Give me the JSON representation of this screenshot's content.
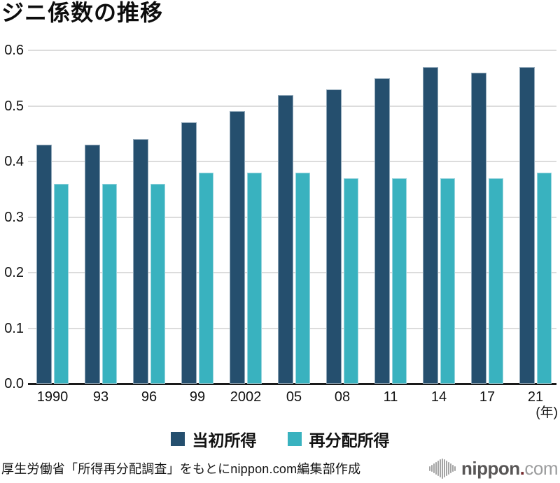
{
  "title": "ジニ係数の推移",
  "chart_data": {
    "type": "bar",
    "title": "ジニ係数の推移",
    "categories": [
      "1990",
      "93",
      "96",
      "99",
      "2002",
      "05",
      "08",
      "11",
      "14",
      "17",
      "21"
    ],
    "series": [
      {
        "name": "当初所得",
        "key": "initial-income",
        "color": "#254F6E",
        "values": [
          0.43,
          0.43,
          0.44,
          0.47,
          0.49,
          0.52,
          0.53,
          0.55,
          0.57,
          0.56,
          0.57
        ]
      },
      {
        "name": "再分配所得",
        "key": "redistributed-income",
        "color": "#39B2BF",
        "values": [
          0.36,
          0.36,
          0.36,
          0.38,
          0.38,
          0.38,
          0.37,
          0.37,
          0.37,
          0.37,
          0.38
        ]
      }
    ],
    "ylim": [
      0,
      0.6
    ],
    "yticks": [
      0,
      0.1,
      0.2,
      0.3,
      0.4,
      0.5,
      0.6
    ],
    "ytick_labels": [
      "0.0",
      "0.1",
      "0.2",
      "0.3",
      "0.4",
      "0.5",
      "0.6"
    ],
    "x_axis_unit": "(年)",
    "grid": true,
    "legend_position": "bottom",
    "axis_color": "#1a1a1a",
    "gridline_color": "#dcdcdc"
  },
  "footer": {
    "source": "厚生労働省「所得再分配調査」をもとにnippon.com編集部作成",
    "logo": {
      "name": "nippon.com",
      "mark_icon": "soundwave-bars-icon",
      "text_main": "nippon",
      "dot": ".",
      "text_suffix": "com"
    }
  }
}
